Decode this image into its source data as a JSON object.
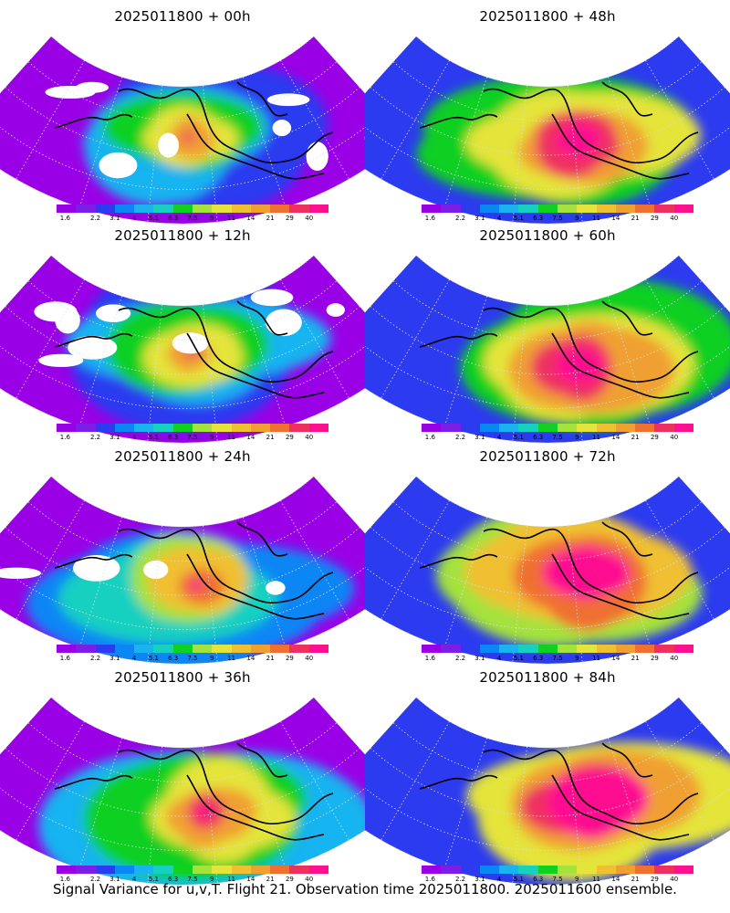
{
  "caption": "Signal Variance for u,v,T. Flight 21. Observation time 2025011800. 2025011600 ensemble.",
  "panels": [
    {
      "title": "2025011800 + 00h"
    },
    {
      "title": "2025011800 + 48h"
    },
    {
      "title": "2025011800 + 12h"
    },
    {
      "title": "2025011800 + 60h"
    },
    {
      "title": "2025011800 + 24h"
    },
    {
      "title": "2025011800 + 72h"
    },
    {
      "title": "2025011800 + 36h"
    },
    {
      "title": "2025011800 + 84h"
    }
  ],
  "colorbar": {
    "labels": [
      "1.6",
      "2.2",
      "3.1",
      "4",
      "5.1",
      "6.3",
      "7.5",
      "9",
      "11",
      "14",
      "21",
      "29",
      "40"
    ],
    "colors": [
      "#9a00e6",
      "#7a1ee8",
      "#2c3af0",
      "#0a86f5",
      "#19b4f0",
      "#16d0c0",
      "#10d020",
      "#a4e23c",
      "#e4e43a",
      "#f0c030",
      "#f0a030",
      "#f07030",
      "#ee3060",
      "#ff1090"
    ]
  }
}
